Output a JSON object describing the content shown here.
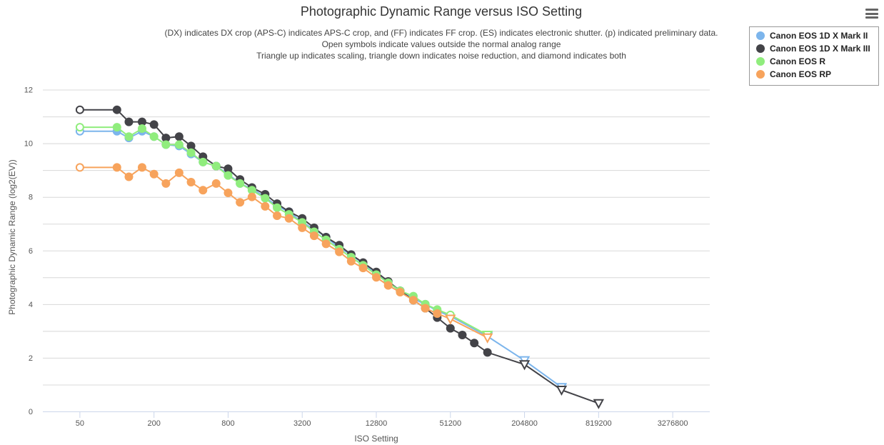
{
  "chart_data": {
    "type": "line",
    "title": "Photographic Dynamic Range versus ISO Setting",
    "subtitle": [
      "(DX) indicates DX crop (APS-C) indicates APS-C crop, and (FF) indicates FF crop. (ES) indicates electronic shutter. (p) indicated preliminary data.",
      "Open symbols indicate values outside the normal analog range",
      "Triangle up indicates scaling, triangle down indicates noise reduction, and diamond indicates both"
    ],
    "xlabel": "ISO Setting",
    "ylabel": "Photographic Dynamic Range (log2(EV))",
    "x_scale": "log2",
    "xlim": [
      25,
      6553600
    ],
    "ylim": [
      0,
      13
    ],
    "x_ticks": [
      50,
      200,
      800,
      3200,
      12800,
      51200,
      204800,
      819200,
      3276800
    ],
    "x_tick_labels": [
      "50",
      "200",
      "800",
      "3200",
      "12800",
      "51200",
      "204800",
      "819200",
      "3276800"
    ],
    "y_ticks": [
      0,
      2,
      4,
      6,
      8,
      10,
      12
    ],
    "y_tick_labels": [
      "0",
      "2",
      "4",
      "6",
      "8",
      "10",
      "12"
    ],
    "grid": true,
    "legend_position": "top-right",
    "series": [
      {
        "name": "Canon EOS 1D X Mark II",
        "color": "#7cb5ec",
        "points": [
          {
            "x": 50,
            "y": 10.45,
            "m": "open"
          },
          {
            "x": 100,
            "y": 10.45
          },
          {
            "x": 125,
            "y": 10.2
          },
          {
            "x": 160,
            "y": 10.45
          },
          {
            "x": 200,
            "y": 10.25
          },
          {
            "x": 250,
            "y": 9.95
          },
          {
            "x": 320,
            "y": 9.9
          },
          {
            "x": 400,
            "y": 9.6
          },
          {
            "x": 500,
            "y": 9.3
          },
          {
            "x": 640,
            "y": 9.15
          },
          {
            "x": 800,
            "y": 8.85
          },
          {
            "x": 1000,
            "y": 8.5
          },
          {
            "x": 1250,
            "y": 8.3
          },
          {
            "x": 1600,
            "y": 8.0
          },
          {
            "x": 2000,
            "y": 7.65
          },
          {
            "x": 2500,
            "y": 7.45
          },
          {
            "x": 3200,
            "y": 7.05
          },
          {
            "x": 4000,
            "y": 6.8
          },
          {
            "x": 5000,
            "y": 6.5
          },
          {
            "x": 6400,
            "y": 6.1
          },
          {
            "x": 8000,
            "y": 5.85
          },
          {
            "x": 10000,
            "y": 5.5
          },
          {
            "x": 12800,
            "y": 5.15
          },
          {
            "x": 16000,
            "y": 4.8
          },
          {
            "x": 20000,
            "y": 4.5
          },
          {
            "x": 25600,
            "y": 4.2
          },
          {
            "x": 32000,
            "y": 4.0
          },
          {
            "x": 40000,
            "y": 3.75
          },
          {
            "x": 51200,
            "y": 3.55,
            "m": "open"
          },
          {
            "x": 102400,
            "y": 2.8,
            "m": "tri-down"
          },
          {
            "x": 204800,
            "y": 1.9,
            "m": "tri-down"
          },
          {
            "x": 409600,
            "y": 0.9,
            "m": "tri-down"
          }
        ]
      },
      {
        "name": "Canon EOS 1D X Mark III",
        "color": "#434348",
        "points": [
          {
            "x": 50,
            "y": 11.25,
            "m": "open"
          },
          {
            "x": 100,
            "y": 11.25
          },
          {
            "x": 125,
            "y": 10.8
          },
          {
            "x": 160,
            "y": 10.8
          },
          {
            "x": 200,
            "y": 10.7
          },
          {
            "x": 250,
            "y": 10.2
          },
          {
            "x": 320,
            "y": 10.25
          },
          {
            "x": 400,
            "y": 9.9
          },
          {
            "x": 500,
            "y": 9.5
          },
          {
            "x": 640,
            "y": 9.15
          },
          {
            "x": 800,
            "y": 9.05
          },
          {
            "x": 1000,
            "y": 8.65
          },
          {
            "x": 1250,
            "y": 8.35
          },
          {
            "x": 1600,
            "y": 8.1
          },
          {
            "x": 2000,
            "y": 7.75
          },
          {
            "x": 2500,
            "y": 7.45
          },
          {
            "x": 3200,
            "y": 7.2
          },
          {
            "x": 4000,
            "y": 6.85
          },
          {
            "x": 5000,
            "y": 6.5
          },
          {
            "x": 6400,
            "y": 6.2
          },
          {
            "x": 8000,
            "y": 5.85
          },
          {
            "x": 10000,
            "y": 5.55
          },
          {
            "x": 12800,
            "y": 5.2
          },
          {
            "x": 16000,
            "y": 4.85
          },
          {
            "x": 20000,
            "y": 4.5
          },
          {
            "x": 25600,
            "y": 4.15
          },
          {
            "x": 32000,
            "y": 3.85
          },
          {
            "x": 40000,
            "y": 3.5
          },
          {
            "x": 51200,
            "y": 3.1
          },
          {
            "x": 64000,
            "y": 2.85
          },
          {
            "x": 80000,
            "y": 2.55
          },
          {
            "x": 102400,
            "y": 2.2
          },
          {
            "x": 204800,
            "y": 1.75,
            "m": "tri-down"
          },
          {
            "x": 409600,
            "y": 0.8,
            "m": "tri-down"
          },
          {
            "x": 819200,
            "y": 0.3,
            "m": "tri-down"
          }
        ]
      },
      {
        "name": "Canon EOS R",
        "color": "#90ed7d",
        "points": [
          {
            "x": 50,
            "y": 10.6,
            "m": "open"
          },
          {
            "x": 100,
            "y": 10.6
          },
          {
            "x": 125,
            "y": 10.25
          },
          {
            "x": 160,
            "y": 10.55
          },
          {
            "x": 200,
            "y": 10.25
          },
          {
            "x": 250,
            "y": 9.95
          },
          {
            "x": 320,
            "y": 9.95
          },
          {
            "x": 400,
            "y": 9.65
          },
          {
            "x": 500,
            "y": 9.3
          },
          {
            "x": 640,
            "y": 9.15
          },
          {
            "x": 800,
            "y": 8.8
          },
          {
            "x": 1000,
            "y": 8.5
          },
          {
            "x": 1250,
            "y": 8.25
          },
          {
            "x": 1600,
            "y": 7.95
          },
          {
            "x": 2000,
            "y": 7.6
          },
          {
            "x": 2500,
            "y": 7.35
          },
          {
            "x": 3200,
            "y": 7.05
          },
          {
            "x": 4000,
            "y": 6.7
          },
          {
            "x": 5000,
            "y": 6.4
          },
          {
            "x": 6400,
            "y": 6.05
          },
          {
            "x": 8000,
            "y": 5.75
          },
          {
            "x": 10000,
            "y": 5.45
          },
          {
            "x": 12800,
            "y": 5.1
          },
          {
            "x": 16000,
            "y": 4.8
          },
          {
            "x": 20000,
            "y": 4.5
          },
          {
            "x": 25600,
            "y": 4.3
          },
          {
            "x": 32000,
            "y": 4.0
          },
          {
            "x": 40000,
            "y": 3.8
          },
          {
            "x": 51200,
            "y": 3.6,
            "m": "open"
          },
          {
            "x": 102400,
            "y": 2.85,
            "m": "tri-down"
          }
        ]
      },
      {
        "name": "Canon EOS RP",
        "color": "#f7a35c",
        "points": [
          {
            "x": 50,
            "y": 9.1,
            "m": "open"
          },
          {
            "x": 100,
            "y": 9.1
          },
          {
            "x": 125,
            "y": 8.75
          },
          {
            "x": 160,
            "y": 9.1
          },
          {
            "x": 200,
            "y": 8.85
          },
          {
            "x": 250,
            "y": 8.5
          },
          {
            "x": 320,
            "y": 8.9
          },
          {
            "x": 400,
            "y": 8.55
          },
          {
            "x": 500,
            "y": 8.25
          },
          {
            "x": 640,
            "y": 8.5
          },
          {
            "x": 800,
            "y": 8.15
          },
          {
            "x": 1000,
            "y": 7.8
          },
          {
            "x": 1250,
            "y": 8.0
          },
          {
            "x": 1600,
            "y": 7.65
          },
          {
            "x": 2000,
            "y": 7.3
          },
          {
            "x": 2500,
            "y": 7.2
          },
          {
            "x": 3200,
            "y": 6.85
          },
          {
            "x": 4000,
            "y": 6.55
          },
          {
            "x": 5000,
            "y": 6.25
          },
          {
            "x": 6400,
            "y": 5.95
          },
          {
            "x": 8000,
            "y": 5.6
          },
          {
            "x": 10000,
            "y": 5.35
          },
          {
            "x": 12800,
            "y": 5.0
          },
          {
            "x": 16000,
            "y": 4.7
          },
          {
            "x": 20000,
            "y": 4.45
          },
          {
            "x": 25600,
            "y": 4.15
          },
          {
            "x": 32000,
            "y": 3.85
          },
          {
            "x": 40000,
            "y": 3.65
          },
          {
            "x": 51200,
            "y": 3.45,
            "m": "tri-down"
          },
          {
            "x": 102400,
            "y": 2.75,
            "m": "tri-down"
          }
        ]
      }
    ]
  }
}
